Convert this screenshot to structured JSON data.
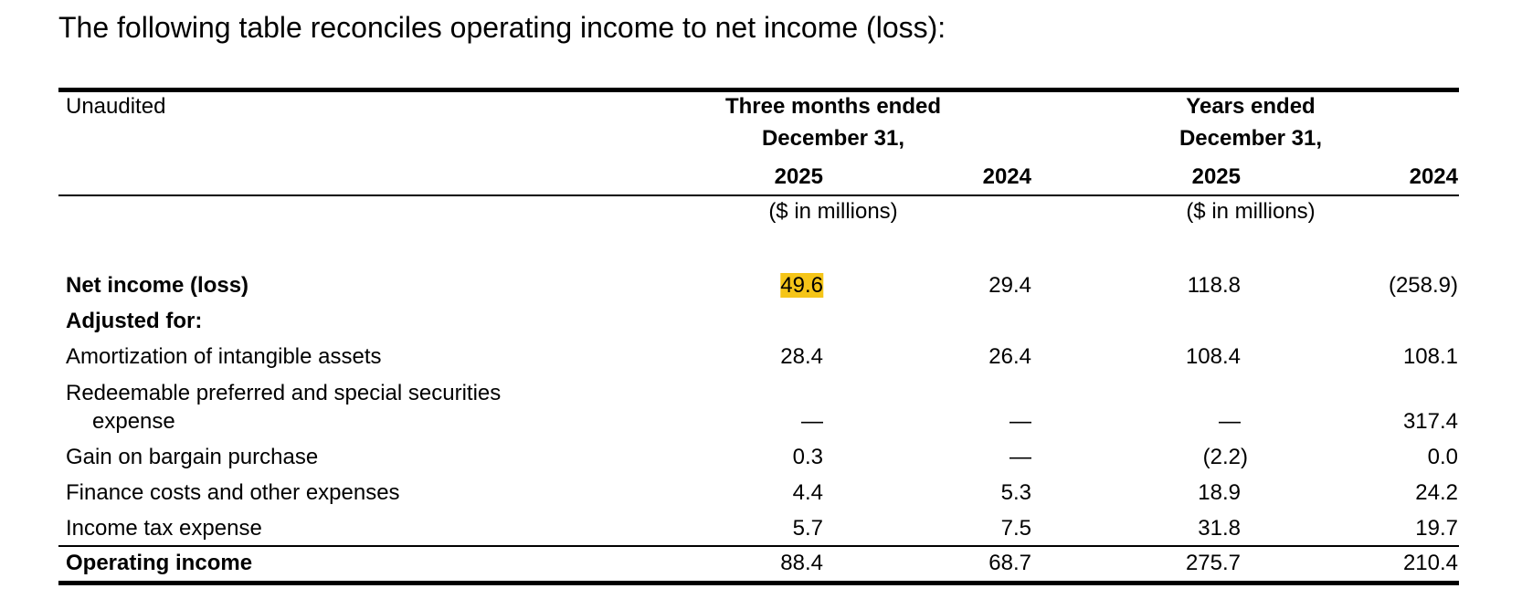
{
  "intro": "The following table reconciles operating income to net income (loss):",
  "header": {
    "unaudited": "Unaudited",
    "three_months_line1": "Three months ended",
    "three_months_line2": "December 31,",
    "years_line1": "Years ended",
    "years_line2": "December 31,",
    "col_2025_q": "2025",
    "col_2024_q": "2024",
    "col_2025_y": "2025",
    "col_2024_y": "2024",
    "units_q": "($ in millions)",
    "units_y": "($ in millions)"
  },
  "rows": [
    {
      "label": "Net income (loss)",
      "v": [
        "49.6",
        "29.4",
        "118.8",
        "(258.9)"
      ]
    },
    {
      "label": "Adjusted for:"
    },
    {
      "label": "Amortization of intangible assets",
      "v": [
        "28.4",
        "26.4",
        "108.4",
        "108.1"
      ]
    },
    {
      "label": "Redeemable preferred and special securities",
      "label2": "expense",
      "v": [
        "—",
        "—",
        "—",
        "317.4"
      ]
    },
    {
      "label": "Gain on bargain purchase",
      "v": [
        "0.3",
        "—",
        "(2.2)",
        "0.0"
      ]
    },
    {
      "label": "Finance costs and other expenses",
      "v": [
        "4.4",
        "5.3",
        "18.9",
        "24.2"
      ]
    },
    {
      "label": "Income tax expense",
      "v": [
        "5.7",
        "7.5",
        "31.8",
        "19.7"
      ]
    },
    {
      "label": "Operating income",
      "v": [
        "88.4",
        "68.7",
        "275.7",
        "210.4"
      ]
    }
  ],
  "highlight_color": "#f5c518"
}
